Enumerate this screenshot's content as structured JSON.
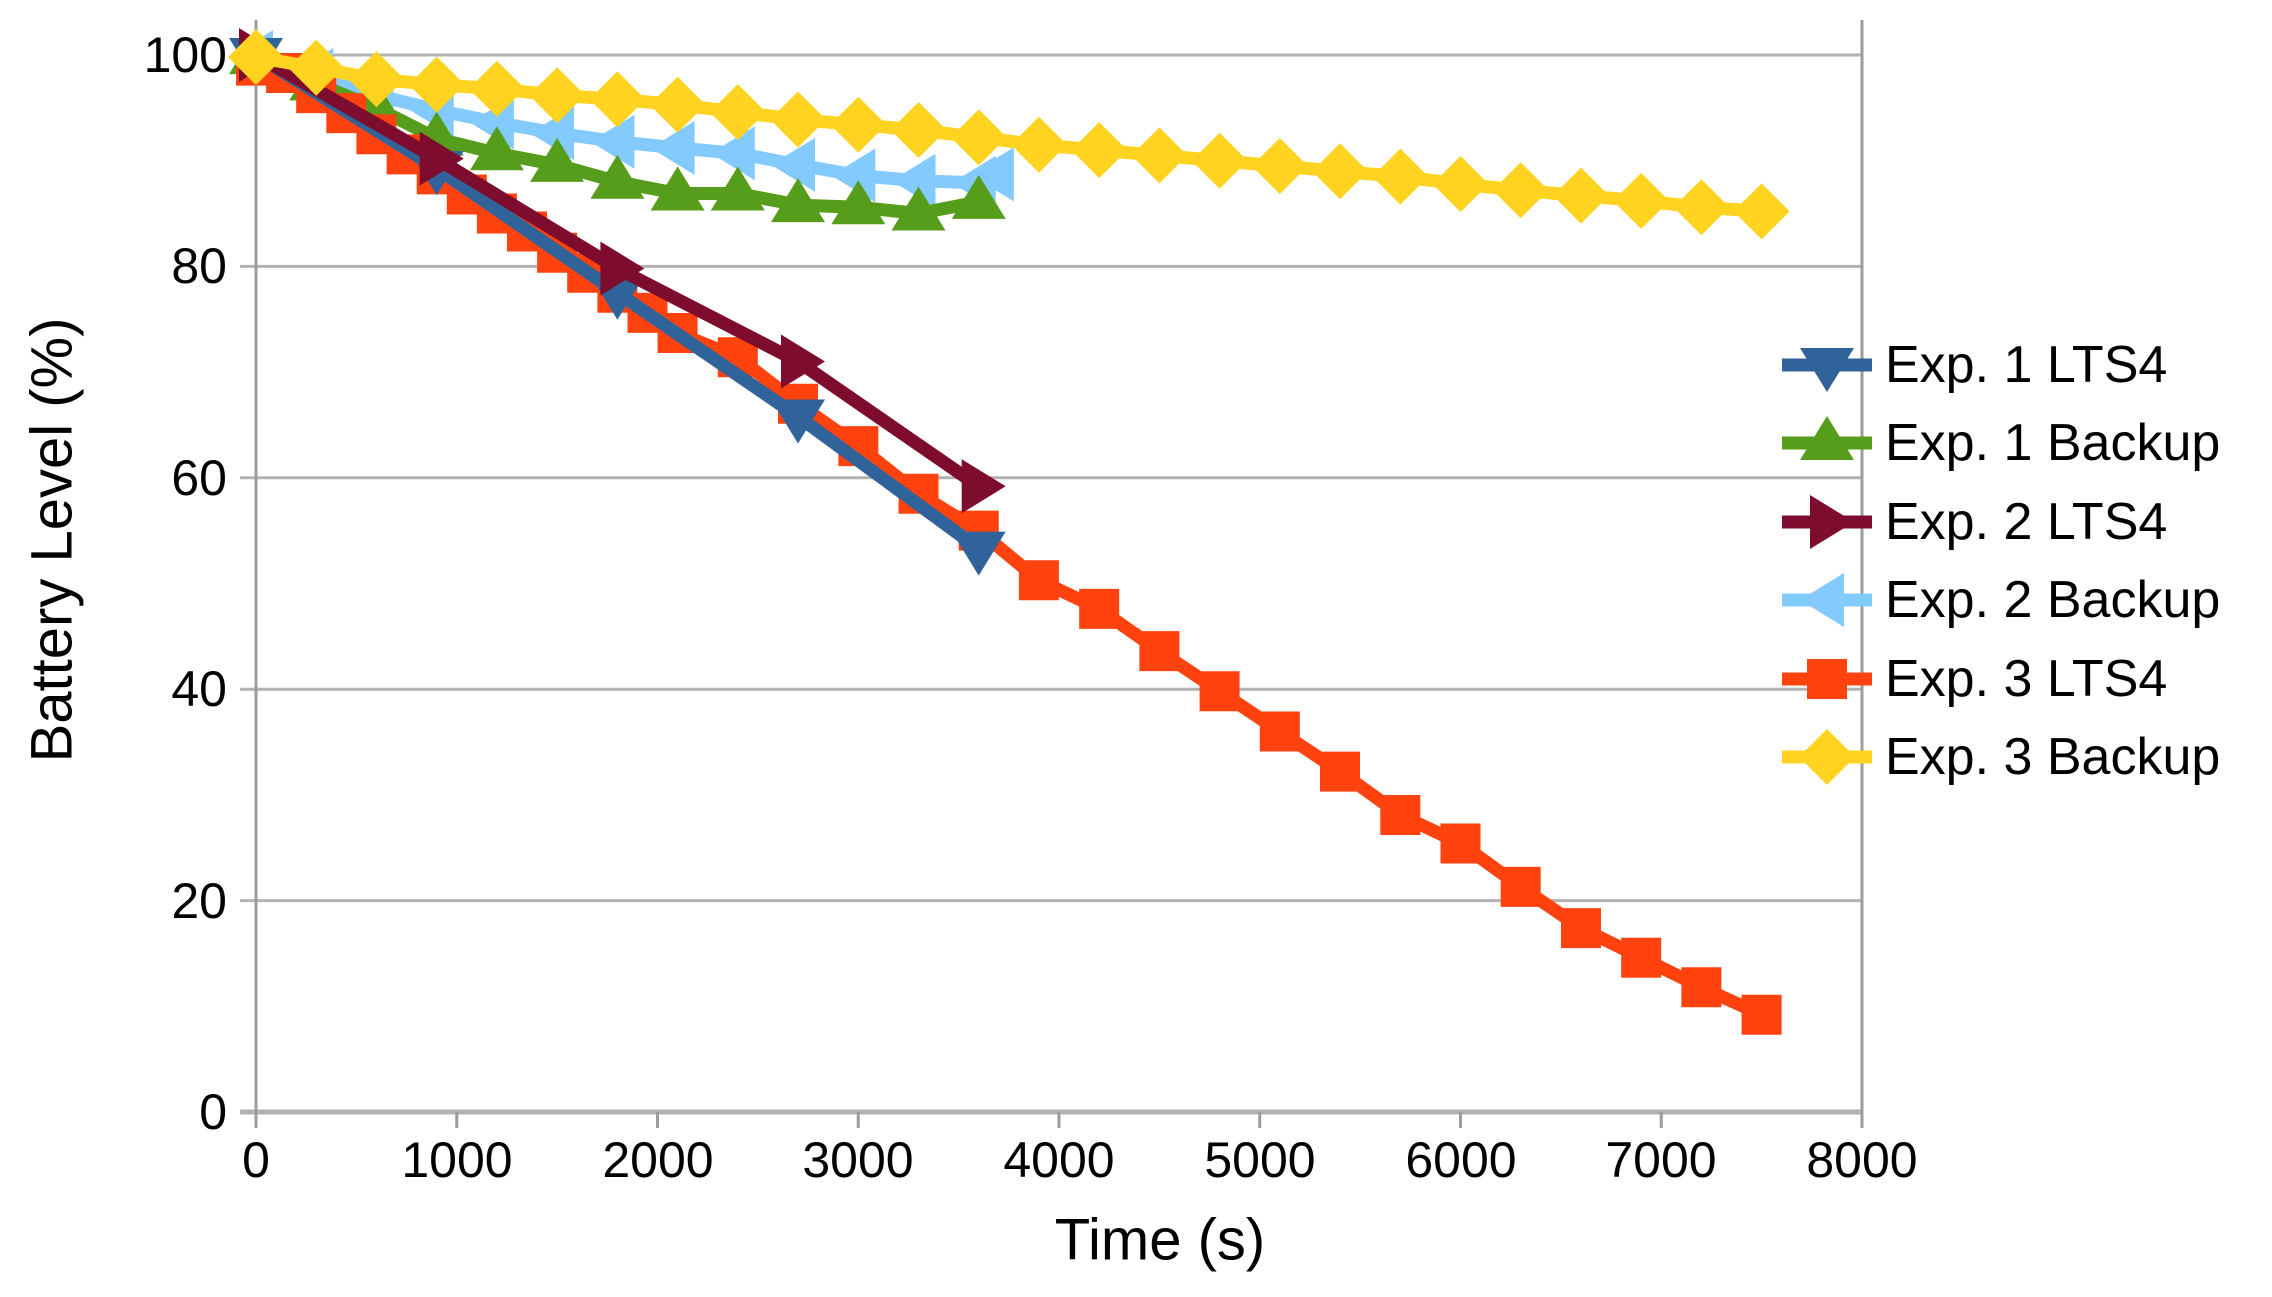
{
  "chart_data": {
    "type": "line",
    "title": "",
    "xlabel": "Time (s)",
    "ylabel": "Battery Level (%)",
    "xlim": [
      0,
      8000
    ],
    "ylim": [
      0,
      100
    ],
    "x_ticks": [
      0,
      1000,
      2000,
      3000,
      4000,
      5000,
      6000,
      7000,
      8000
    ],
    "y_ticks": [
      0,
      20,
      40,
      60,
      80,
      100
    ],
    "grid": "horizontal",
    "legend_position": "right",
    "series": [
      {
        "name": "Exp. 1 LTS4",
        "color": "#31639B",
        "marker": "triangle-down",
        "points": [
          [
            0,
            100
          ],
          [
            900,
            89.3
          ],
          [
            1800,
            77.5
          ],
          [
            2700,
            65.8
          ],
          [
            3600,
            53.3
          ]
        ]
      },
      {
        "name": "Exp. 1 Backup",
        "color": "#579D1C",
        "marker": "triangle-up",
        "points": [
          [
            0,
            99.8
          ],
          [
            300,
            97.3
          ],
          [
            600,
            95.0
          ],
          [
            900,
            92.1
          ],
          [
            1200,
            90.7
          ],
          [
            1500,
            89.6
          ],
          [
            1800,
            88.0
          ],
          [
            2100,
            86.9
          ],
          [
            2400,
            86.9
          ],
          [
            2700,
            85.8
          ],
          [
            3000,
            85.6
          ],
          [
            3300,
            85.0
          ],
          [
            3600,
            86.1
          ]
        ]
      },
      {
        "name": "Exp. 2 LTS4",
        "color": "#7D0C2E",
        "marker": "triangle-right",
        "points": [
          [
            0,
            100
          ],
          [
            900,
            90.2
          ],
          [
            1800,
            79.8
          ],
          [
            2700,
            71.0
          ],
          [
            3600,
            59.2
          ]
        ]
      },
      {
        "name": "Exp. 2 Backup",
        "color": "#83CAFF",
        "marker": "triangle-left",
        "points": [
          [
            0,
            99.8
          ],
          [
            300,
            98.1
          ],
          [
            600,
            96.2
          ],
          [
            900,
            94.8
          ],
          [
            1200,
            93.6
          ],
          [
            1500,
            92.6
          ],
          [
            1800,
            91.8
          ],
          [
            2100,
            91.2
          ],
          [
            2400,
            90.7
          ],
          [
            2700,
            89.6
          ],
          [
            3000,
            88.6
          ],
          [
            3300,
            88.1
          ],
          [
            3600,
            87.9
          ],
          [
            3690,
            88.7
          ]
        ]
      },
      {
        "name": "Exp. 3 LTS4",
        "color": "#FF420E",
        "marker": "square",
        "points": [
          [
            0,
            99.0
          ],
          [
            150,
            98.3
          ],
          [
            300,
            96.4
          ],
          [
            450,
            94.5
          ],
          [
            600,
            92.5
          ],
          [
            750,
            90.6
          ],
          [
            900,
            88.7
          ],
          [
            1050,
            86.8
          ],
          [
            1200,
            85.0
          ],
          [
            1350,
            83.3
          ],
          [
            1500,
            81.3
          ],
          [
            1650,
            79.4
          ],
          [
            1800,
            77.5
          ],
          [
            1950,
            75.6
          ],
          [
            2100,
            73.7
          ],
          [
            2400,
            71.4
          ],
          [
            2700,
            67.0
          ],
          [
            3000,
            63.0
          ],
          [
            3300,
            58.5
          ],
          [
            3600,
            55.0
          ],
          [
            3900,
            50.3
          ],
          [
            4200,
            47.6
          ],
          [
            4500,
            43.6
          ],
          [
            4800,
            39.8
          ],
          [
            5100,
            36.0
          ],
          [
            5400,
            32.2
          ],
          [
            5700,
            28.1
          ],
          [
            6000,
            25.4
          ],
          [
            6300,
            21.3
          ],
          [
            6600,
            17.4
          ],
          [
            6900,
            14.6
          ],
          [
            7200,
            11.8
          ],
          [
            7500,
            9.2
          ]
        ]
      },
      {
        "name": "Exp. 3 Backup",
        "color": "#FFD320",
        "marker": "diamond",
        "points": [
          [
            0,
            99.8
          ],
          [
            300,
            98.8
          ],
          [
            600,
            97.7
          ],
          [
            900,
            97.2
          ],
          [
            1200,
            96.8
          ],
          [
            1500,
            96.2
          ],
          [
            1800,
            95.8
          ],
          [
            2100,
            95.3
          ],
          [
            2400,
            94.6
          ],
          [
            2700,
            93.9
          ],
          [
            3000,
            93.4
          ],
          [
            3300,
            92.9
          ],
          [
            3600,
            92.2
          ],
          [
            3900,
            91.5
          ],
          [
            4200,
            91.0
          ],
          [
            4500,
            90.5
          ],
          [
            4800,
            90.0
          ],
          [
            5100,
            89.5
          ],
          [
            5400,
            89.0
          ],
          [
            5700,
            88.5
          ],
          [
            6000,
            87.8
          ],
          [
            6300,
            87.2
          ],
          [
            6600,
            86.7
          ],
          [
            6900,
            86.2
          ],
          [
            7200,
            85.6
          ],
          [
            7500,
            85.2
          ]
        ]
      }
    ]
  }
}
